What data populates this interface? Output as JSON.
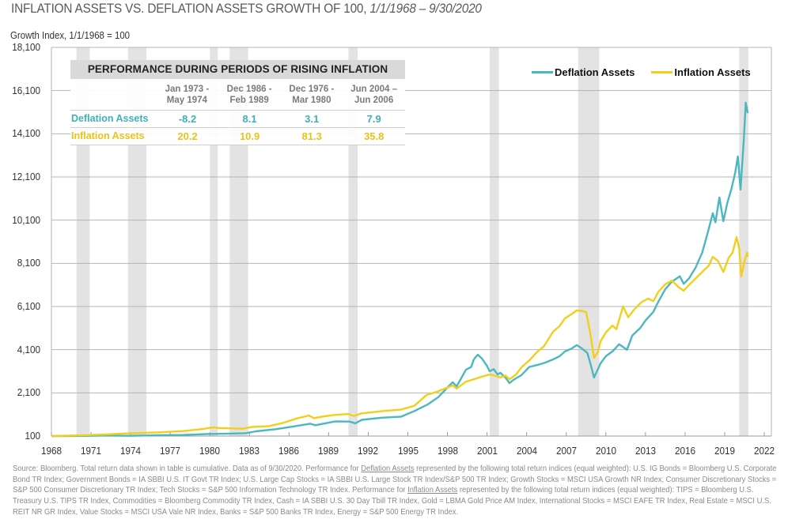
{
  "page": {
    "title_main": "INFLATION ASSETS VS. DEFLATION ASSETS GROWTH OF 100, ",
    "title_dates": "1/1/1968 – 9/30/2020"
  },
  "table": {
    "title": "PERFORMANCE DURING PERIODS OF RISING INFLATION",
    "columns": [
      {
        "line1": "Jan 1973 -",
        "line2": "May 1974"
      },
      {
        "line1": "Dec 1986 -",
        "line2": "Feb 1989"
      },
      {
        "line1": "Dec 1976 -",
        "line2": "Mar 1980"
      },
      {
        "line1": "Jun 2004 –",
        "line2": "Jun 2006"
      }
    ],
    "rows": [
      {
        "label": "Deflation Assets",
        "values": [
          "-8.2",
          "8.1",
          "3.1",
          "7.9"
        ]
      },
      {
        "label": "Inflation Assets",
        "values": [
          "20.2",
          "10.9",
          "81.3",
          "35.8"
        ]
      }
    ]
  },
  "footnote": {
    "p1": "Source: Bloomberg.  Total return data shown in table is cumulative.  Data as of 9/30/2020.  Performance for ",
    "link1": "Deflation Assets",
    "p2": " represented by the following total return indices (equal weighted): U.S. IG Bonds = Bloomberg U.S. Corporate Bond TR Index; Government Bonds = IA SBBI U.S. IT Govt TR Index; U.S. Large Cap Stocks = IA SBBI U.S. Large Stock TR Index/S&P 500 TR Index; Growth Stocks = MSCI USA Growth NR Index; Consumer Discretionary Stocks = S&P 500 Consumer Discretionary TR Index; Tech Stocks = S&P 500 Information Technology TR Index. Performance for ",
    "link2": "Inflation Assets",
    "p3": " represented by the following total return indices (equal weighted): TIPS = Bloomberg U.S. Treasury U.S. TIPS TR Index, Commodities = Bloomberg Commodity TR Index, Cash = IA SBBI U.S. 30 Day Tbill TR Index, Gold = LBMA Gold Price AM Index, International Stocks = MSCI EAFE TR Index, Real Estate = MSCI U.S. REIT NR GR Index, Value Stocks = MSCI USA Vale NR Index, Banks = S&P 500 Banks TR Index, Energy = S&P 500 Energy TR Index."
  },
  "chart_data": {
    "type": "line",
    "title": "INFLATION ASSETS VS. DEFLATION ASSETS GROWTH OF 100, 1/1/1968 – 9/30/2020",
    "xlabel": "",
    "ylabel": "Growth Index, 1/1/1968 = 100",
    "xlim": [
      1968,
      2023
    ],
    "ylim": [
      100,
      18100
    ],
    "y_ticks": [
      100,
      2100,
      4100,
      6100,
      8100,
      10100,
      12100,
      14100,
      16100,
      18100
    ],
    "y_tick_labels": [
      "100",
      "2,100",
      "4,100",
      "6,100",
      "8,100",
      "10,100",
      "12,100",
      "14,100",
      "16,100",
      "18,100"
    ],
    "x_ticks": [
      1968,
      1971,
      1974,
      1977,
      1980,
      1983,
      1986,
      1989,
      1992,
      1995,
      1998,
      2001,
      2004,
      2007,
      2010,
      2013,
      2016,
      2019,
      2022
    ],
    "grid": "horizontal",
    "legend_position": "top-right",
    "colors": {
      "deflation": "#4bb8c0",
      "inflation": "#f2cf1b",
      "shading": "#e3e3e3"
    },
    "shaded_periods": [
      [
        1969.9,
        1970.9
      ],
      [
        1973.8,
        1975.2
      ],
      [
        1980.0,
        1980.6
      ],
      [
        1981.5,
        1982.9
      ],
      [
        1990.5,
        1991.2
      ],
      [
        2001.2,
        2001.9
      ],
      [
        2007.9,
        2009.5
      ],
      [
        2020.1,
        2020.8
      ]
    ],
    "series": [
      {
        "name": "Deflation Assets",
        "color": "#4bb8c0",
        "points": [
          [
            1968.0,
            100
          ],
          [
            1970.0,
            105
          ],
          [
            1972.0,
            125
          ],
          [
            1974.0,
            110
          ],
          [
            1976.0,
            140
          ],
          [
            1978.0,
            150
          ],
          [
            1980.0,
            200
          ],
          [
            1981.5,
            215
          ],
          [
            1982.7,
            230
          ],
          [
            1983.5,
            320
          ],
          [
            1985.0,
            420
          ],
          [
            1986.5,
            560
          ],
          [
            1987.6,
            670
          ],
          [
            1988.0,
            600
          ],
          [
            1989.5,
            780
          ],
          [
            1990.6,
            770
          ],
          [
            1991.0,
            690
          ],
          [
            1991.5,
            850
          ],
          [
            1993.0,
            950
          ],
          [
            1994.5,
            1000
          ],
          [
            1995.5,
            1260
          ],
          [
            1996.5,
            1560
          ],
          [
            1997.3,
            1900
          ],
          [
            1998.0,
            2350
          ],
          [
            1998.4,
            2590
          ],
          [
            1998.7,
            2400
          ],
          [
            1999.4,
            3170
          ],
          [
            1999.8,
            3300
          ],
          [
            2000.0,
            3650
          ],
          [
            2000.3,
            3870
          ],
          [
            2000.6,
            3700
          ],
          [
            2001.0,
            3350
          ],
          [
            2001.2,
            3100
          ],
          [
            2001.5,
            3200
          ],
          [
            2001.8,
            2950
          ],
          [
            2002.0,
            3030
          ],
          [
            2002.4,
            2800
          ],
          [
            2002.7,
            2550
          ],
          [
            2003.0,
            2700
          ],
          [
            2003.6,
            2920
          ],
          [
            2004.2,
            3300
          ],
          [
            2004.8,
            3390
          ],
          [
            2005.4,
            3500
          ],
          [
            2006.0,
            3650
          ],
          [
            2006.5,
            3800
          ],
          [
            2006.9,
            4020
          ],
          [
            2007.4,
            4150
          ],
          [
            2007.8,
            4310
          ],
          [
            2008.2,
            4150
          ],
          [
            2008.6,
            3950
          ],
          [
            2008.9,
            3300
          ],
          [
            2009.1,
            2810
          ],
          [
            2009.4,
            3200
          ],
          [
            2009.6,
            3470
          ],
          [
            2010.0,
            3800
          ],
          [
            2010.5,
            4020
          ],
          [
            2011.0,
            4350
          ],
          [
            2011.6,
            4100
          ],
          [
            2012.0,
            4750
          ],
          [
            2012.6,
            5100
          ],
          [
            2013.0,
            5450
          ],
          [
            2013.6,
            5850
          ],
          [
            2014.0,
            6350
          ],
          [
            2014.5,
            6900
          ],
          [
            2015.0,
            7250
          ],
          [
            2015.6,
            7500
          ],
          [
            2015.9,
            7150
          ],
          [
            2016.3,
            7400
          ],
          [
            2016.8,
            7900
          ],
          [
            2017.3,
            8600
          ],
          [
            2017.8,
            9700
          ],
          [
            2018.1,
            10420
          ],
          [
            2018.3,
            10000
          ],
          [
            2018.6,
            11150
          ],
          [
            2018.9,
            10050
          ],
          [
            2019.2,
            10900
          ],
          [
            2019.5,
            11520
          ],
          [
            2019.8,
            12300
          ],
          [
            2020.0,
            13050
          ],
          [
            2020.2,
            11520
          ],
          [
            2020.45,
            13800
          ],
          [
            2020.6,
            15540
          ],
          [
            2020.75,
            15060
          ]
        ]
      },
      {
        "name": "Inflation Assets",
        "color": "#f2cf1b",
        "points": [
          [
            1968.0,
            100
          ],
          [
            1970.0,
            130
          ],
          [
            1972.0,
            170
          ],
          [
            1974.0,
            230
          ],
          [
            1976.0,
            270
          ],
          [
            1978.0,
            330
          ],
          [
            1979.5,
            430
          ],
          [
            1980.2,
            500
          ],
          [
            1980.8,
            470
          ],
          [
            1981.5,
            460
          ],
          [
            1982.5,
            440
          ],
          [
            1983.2,
            520
          ],
          [
            1984.5,
            560
          ],
          [
            1985.5,
            700
          ],
          [
            1986.5,
            900
          ],
          [
            1987.5,
            1050
          ],
          [
            1987.9,
            930
          ],
          [
            1988.5,
            1000
          ],
          [
            1989.5,
            1080
          ],
          [
            1990.5,
            1120
          ],
          [
            1990.9,
            1030
          ],
          [
            1991.5,
            1150
          ],
          [
            1993.0,
            1250
          ],
          [
            1994.5,
            1330
          ],
          [
            1995.5,
            1500
          ],
          [
            1996.4,
            2000
          ],
          [
            1997.2,
            2150
          ],
          [
            1997.8,
            2300
          ],
          [
            1998.4,
            2440
          ],
          [
            1998.7,
            2300
          ],
          [
            1999.4,
            2620
          ],
          [
            2000.0,
            2730
          ],
          [
            2000.6,
            2850
          ],
          [
            2001.2,
            2950
          ],
          [
            2001.6,
            2900
          ],
          [
            2002.0,
            2810
          ],
          [
            2002.4,
            2900
          ],
          [
            2002.7,
            2730
          ],
          [
            2003.2,
            2950
          ],
          [
            2003.6,
            3280
          ],
          [
            2004.2,
            3600
          ],
          [
            2004.8,
            4000
          ],
          [
            2005.3,
            4250
          ],
          [
            2006.0,
            4930
          ],
          [
            2006.5,
            5200
          ],
          [
            2006.9,
            5550
          ],
          [
            2007.4,
            5750
          ],
          [
            2007.8,
            5920
          ],
          [
            2008.2,
            5900
          ],
          [
            2008.5,
            5840
          ],
          [
            2008.8,
            4930
          ],
          [
            2009.1,
            3720
          ],
          [
            2009.4,
            4000
          ],
          [
            2009.6,
            4490
          ],
          [
            2010.0,
            4900
          ],
          [
            2010.5,
            5220
          ],
          [
            2010.8,
            5050
          ],
          [
            2011.3,
            6100
          ],
          [
            2011.7,
            5600
          ],
          [
            2012.2,
            6000
          ],
          [
            2012.7,
            6300
          ],
          [
            2013.2,
            6470
          ],
          [
            2013.6,
            6350
          ],
          [
            2014.0,
            6800
          ],
          [
            2014.5,
            7130
          ],
          [
            2015.0,
            7300
          ],
          [
            2015.5,
            7000
          ],
          [
            2015.9,
            6830
          ],
          [
            2016.3,
            7100
          ],
          [
            2016.8,
            7400
          ],
          [
            2017.3,
            7700
          ],
          [
            2017.8,
            8000
          ],
          [
            2018.1,
            8400
          ],
          [
            2018.5,
            8200
          ],
          [
            2018.9,
            7700
          ],
          [
            2019.3,
            8350
          ],
          [
            2019.6,
            8600
          ],
          [
            2019.9,
            9320
          ],
          [
            2020.1,
            8800
          ],
          [
            2020.25,
            7490
          ],
          [
            2020.5,
            8200
          ],
          [
            2020.7,
            8600
          ],
          [
            2020.75,
            8400
          ]
        ]
      }
    ]
  }
}
